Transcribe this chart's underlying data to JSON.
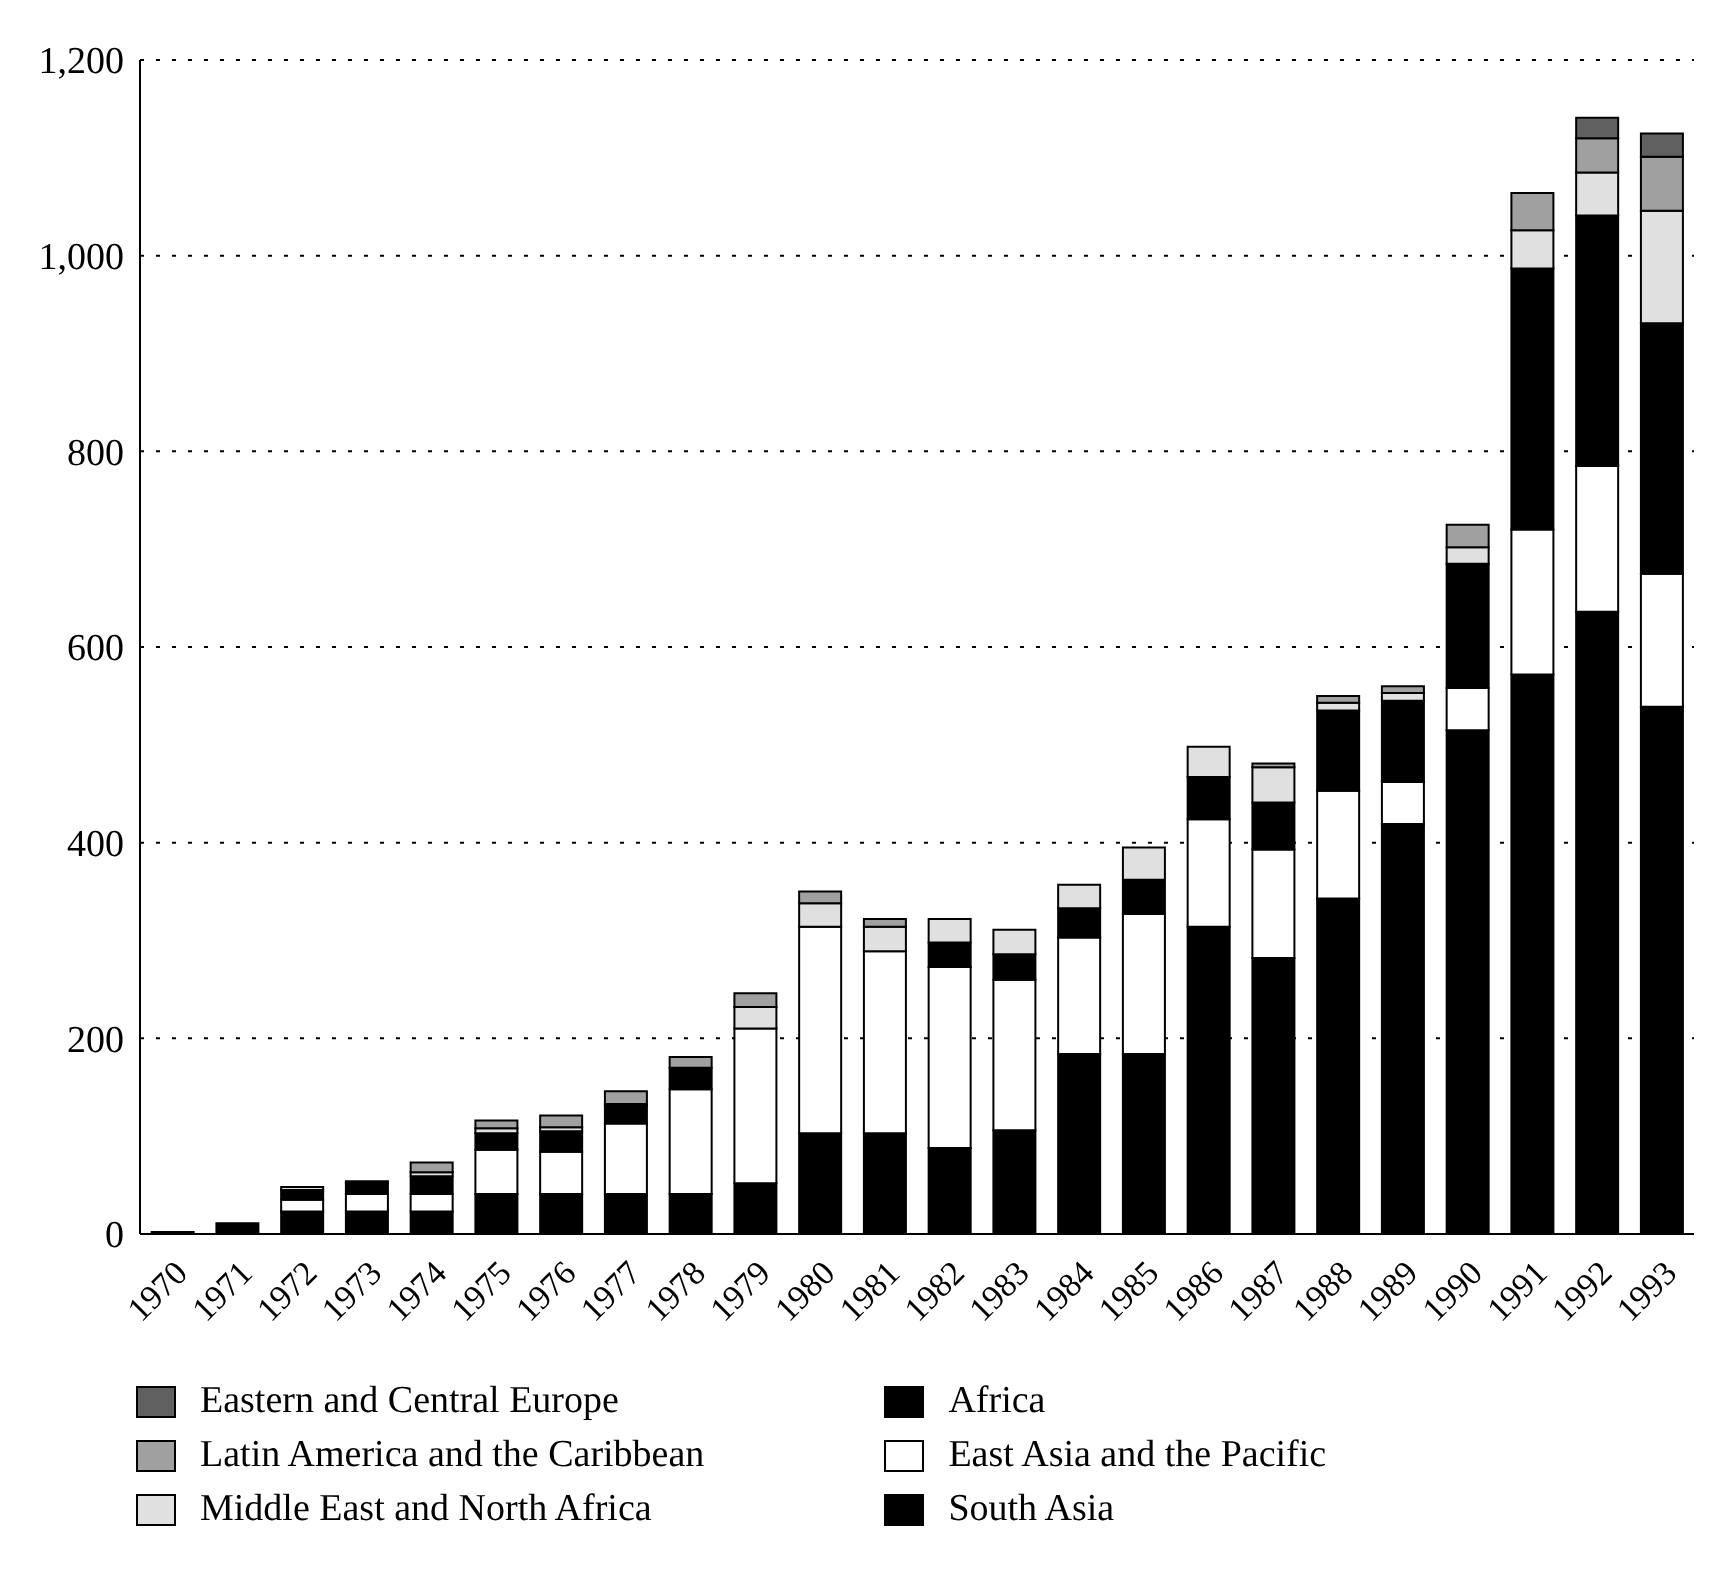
{
  "chart_data": {
    "type": "bar",
    "stacked": true,
    "categories": [
      "1970",
      "1971",
      "1972",
      "1973",
      "1974",
      "1975",
      "1976",
      "1977",
      "1978",
      "1979",
      "1980",
      "1981",
      "1982",
      "1983",
      "1984",
      "1985",
      "1986",
      "1987",
      "1988",
      "1989",
      "1990",
      "1991",
      "1992",
      "1993"
    ],
    "series": [
      {
        "name": "South Asia",
        "color": "#000000",
        "values": [
          2,
          11,
          23,
          23,
          23,
          41,
          41,
          41,
          41,
          52,
          103,
          103,
          88,
          106,
          184,
          184,
          314,
          282,
          343,
          419,
          515,
          572,
          636,
          539
        ]
      },
      {
        "name": "East Asia and the Pacific",
        "color": "#ffffff",
        "values": [
          0,
          0,
          12,
          18,
          18,
          45,
          43,
          72,
          107,
          158,
          211,
          186,
          185,
          154,
          119,
          143,
          110,
          111,
          110,
          43,
          43,
          148,
          149,
          136
        ]
      },
      {
        "name": "Africa",
        "color": "#000000",
        "values": [
          0,
          0,
          10,
          11,
          18,
          17,
          21,
          18,
          22,
          0,
          0,
          0,
          25,
          26,
          30,
          35,
          43,
          48,
          82,
          83,
          127,
          267,
          256,
          256
        ]
      },
      {
        "name": "Middle East and North Africa",
        "color": "#e0e0e0",
        "values": [
          0,
          0,
          3,
          2,
          4,
          5,
          4,
          2,
          0,
          22,
          24,
          25,
          24,
          25,
          24,
          33,
          31,
          36,
          8,
          8,
          17,
          39,
          44,
          115
        ]
      },
      {
        "name": "Latin America and the Caribbean",
        "color": "#a0a0a0",
        "values": [
          0,
          0,
          0,
          0,
          10,
          8,
          12,
          13,
          11,
          14,
          12,
          8,
          0,
          0,
          0,
          0,
          0,
          4,
          7,
          7,
          23,
          38,
          35,
          55
        ]
      },
      {
        "name": "Eastern and Central Europe",
        "color": "#606060",
        "values": [
          0,
          0,
          0,
          0,
          0,
          0,
          0,
          0,
          0,
          0,
          0,
          0,
          0,
          0,
          0,
          0,
          0,
          0,
          0,
          0,
          0,
          0,
          21,
          24
        ]
      }
    ],
    "ylim": [
      0,
      1200
    ],
    "yticks": [
      0,
      200,
      400,
      600,
      800,
      {
        "value": 1000,
        "label": "1,000"
      },
      {
        "value": 1200,
        "label": "1,200"
      }
    ],
    "grid": "y",
    "legend": "bottom"
  }
}
